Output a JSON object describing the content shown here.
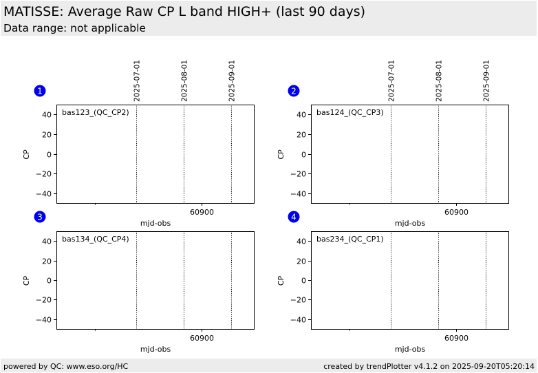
{
  "header": {
    "title": "MATISSE: Average Raw CP L band HIGH+ (last 90 days)",
    "subtitle": "Data range: not applicable"
  },
  "footer": {
    "left": "powered by QC: www.eso.org/HC",
    "right": "created by trendPlotter v4.1.2 on 2025-09-20T05:20:14"
  },
  "colors": {
    "badge": "#0000ee",
    "header_bg": "#ececec"
  },
  "chart_data": [
    {
      "type": "scatter",
      "badge": "1",
      "label": "bas123_(QC_CP2)",
      "xlabel": "mjd-obs",
      "ylabel": "CP",
      "ylim": [
        -50,
        50
      ],
      "yticks": [
        40,
        20,
        0,
        -20,
        -40
      ],
      "xlim": [
        60805,
        60934
      ],
      "xticks": [
        60900
      ],
      "minor_xticks": [
        60830
      ],
      "date_lines": [
        {
          "label": "2025-07-01",
          "mjd": 60857
        },
        {
          "label": "2025-08-01",
          "mjd": 60888
        },
        {
          "label": "2025-09-01",
          "mjd": 60919
        }
      ],
      "series": []
    },
    {
      "type": "scatter",
      "badge": "2",
      "label": "bas124_(QC_CP3)",
      "xlabel": "mjd-obs",
      "ylabel": "CP",
      "ylim": [
        -50,
        50
      ],
      "yticks": [
        40,
        20,
        0,
        -20,
        -40
      ],
      "xlim": [
        60805,
        60934
      ],
      "xticks": [
        60900
      ],
      "minor_xticks": [
        60830
      ],
      "date_lines": [
        {
          "label": "2025-07-01",
          "mjd": 60857
        },
        {
          "label": "2025-08-01",
          "mjd": 60888
        },
        {
          "label": "2025-09-01",
          "mjd": 60919
        }
      ],
      "series": []
    },
    {
      "type": "scatter",
      "badge": "3",
      "label": "bas134_(QC_CP4)",
      "xlabel": "mjd-obs",
      "ylabel": "CP",
      "ylim": [
        -50,
        50
      ],
      "yticks": [
        40,
        20,
        0,
        -20,
        -40
      ],
      "xlim": [
        60805,
        60934
      ],
      "xticks": [
        60900
      ],
      "minor_xticks": [
        60830
      ],
      "date_lines": [
        {
          "label": "2025-07-01",
          "mjd": 60857
        },
        {
          "label": "2025-08-01",
          "mjd": 60888
        },
        {
          "label": "2025-09-01",
          "mjd": 60919
        }
      ],
      "series": []
    },
    {
      "type": "scatter",
      "badge": "4",
      "label": "bas234_(QC_CP1)",
      "xlabel": "mjd-obs",
      "ylabel": "CP",
      "ylim": [
        -50,
        50
      ],
      "yticks": [
        40,
        20,
        0,
        -20,
        -40
      ],
      "xlim": [
        60805,
        60934
      ],
      "xticks": [
        60900
      ],
      "minor_xticks": [
        60830
      ],
      "date_lines": [
        {
          "label": "2025-07-01",
          "mjd": 60857
        },
        {
          "label": "2025-08-01",
          "mjd": 60888
        },
        {
          "label": "2025-09-01",
          "mjd": 60919
        }
      ],
      "series": []
    }
  ]
}
